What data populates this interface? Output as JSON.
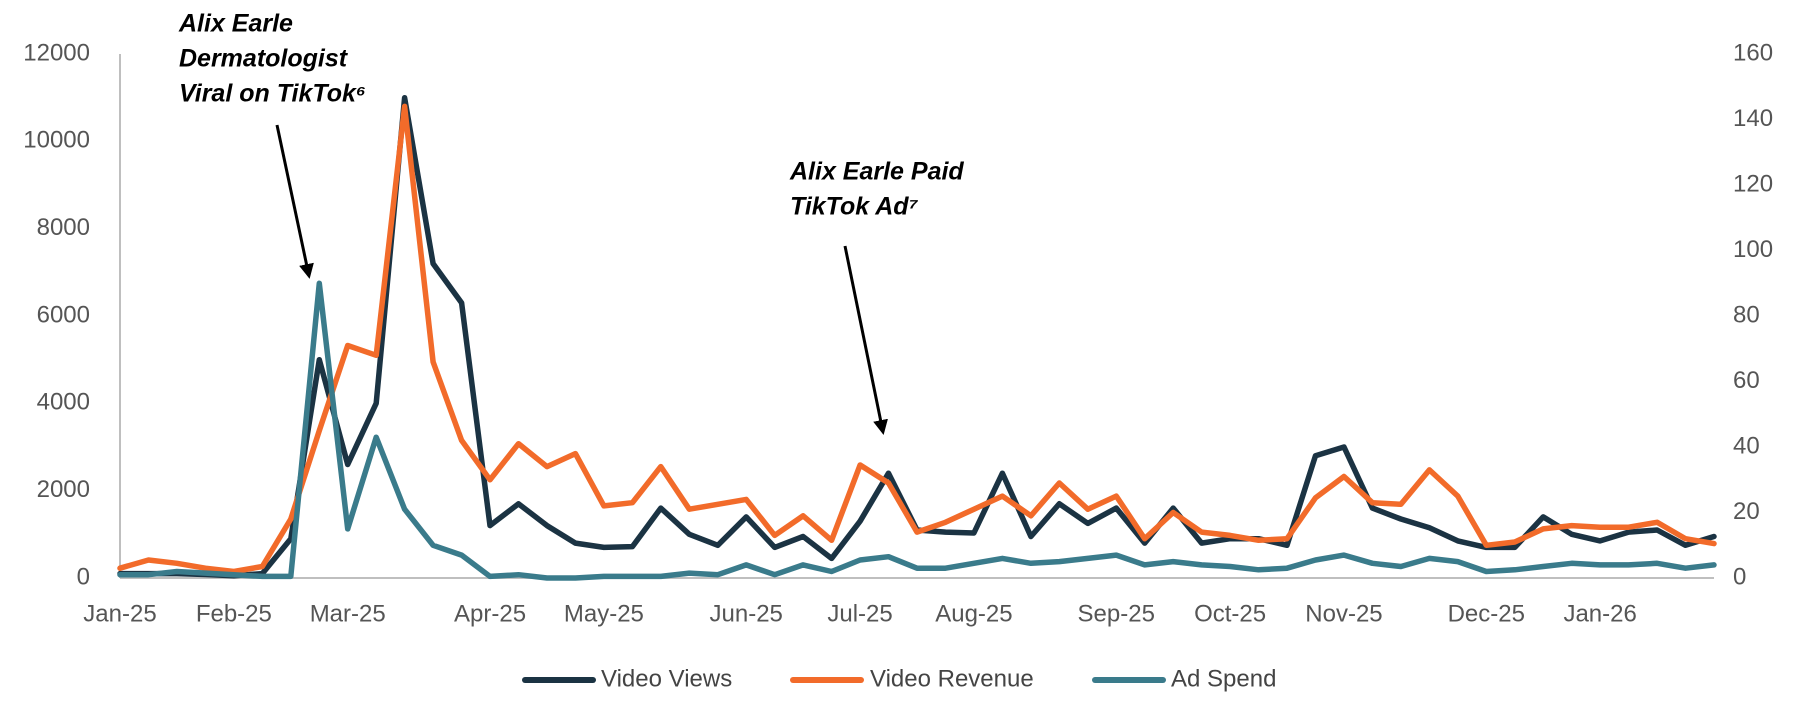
{
  "chart_data": {
    "type": "line",
    "categories": [
      "Jan-25",
      null,
      null,
      null,
      "Feb-25",
      null,
      null,
      null,
      "Mar-25",
      null,
      null,
      null,
      null,
      "Apr-25",
      null,
      null,
      null,
      "May-25",
      null,
      null,
      null,
      null,
      "Jun-25",
      null,
      null,
      null,
      "Jul-25",
      null,
      null,
      null,
      "Aug-25",
      null,
      null,
      null,
      null,
      "Sep-25",
      null,
      null,
      null,
      "Oct-25",
      null,
      null,
      null,
      "Nov-25",
      null,
      null,
      null,
      null,
      "Dec-25",
      null,
      null,
      null,
      "Jan-26",
      null,
      null,
      null,
      null
    ],
    "series": [
      {
        "name": "Video Views",
        "color": "#1b3343",
        "axis": "y",
        "values": [
          100,
          100,
          100,
          80,
          50,
          100,
          900,
          5000,
          2600,
          4000,
          11000,
          7200,
          6300,
          1200,
          1700,
          1200,
          800,
          700,
          720,
          1600,
          1000,
          750,
          1400,
          700,
          950,
          450,
          1300,
          2400,
          1100,
          1050,
          1030,
          2400,
          950,
          1700,
          1250,
          1600,
          800,
          1600,
          800,
          900,
          900,
          750,
          2800,
          3000,
          1600,
          1350,
          1150,
          850,
          700,
          700,
          1400,
          1000,
          850,
          1050,
          1100,
          750,
          950
        ]
      },
      {
        "name": "Video Revenue",
        "color": "#f26b2a",
        "axis": "y2",
        "values": [
          3,
          5.5,
          4.5,
          3,
          2,
          3.5,
          18,
          45,
          71,
          68,
          144,
          66,
          42,
          30,
          41,
          34,
          38,
          22,
          23,
          34,
          21,
          22.5,
          24,
          13,
          19,
          11.5,
          34.5,
          29,
          14,
          17,
          21,
          25,
          19,
          29,
          21,
          25,
          12,
          20,
          14,
          13,
          11.5,
          12,
          24.5,
          31,
          23,
          22.5,
          33,
          25,
          10,
          11,
          15,
          16,
          15.5,
          15.5,
          17,
          12,
          10.5
        ]
      },
      {
        "name": "Ad Spend",
        "color": "#3a7b8b",
        "axis": "y2",
        "values": [
          1,
          1,
          2,
          1.5,
          1,
          0.5,
          0.5,
          90,
          15,
          43,
          21,
          10,
          7,
          0.5,
          1,
          0,
          0,
          0.5,
          0.5,
          0.5,
          1.5,
          1,
          4,
          1,
          4,
          2,
          5.5,
          6.5,
          3,
          3,
          4.5,
          6,
          4.5,
          5,
          6,
          7,
          4,
          5,
          4,
          3.5,
          2.5,
          3,
          5.5,
          7,
          4.5,
          3.5,
          6,
          5,
          2,
          2.5,
          3.5,
          4.5,
          4,
          4,
          4.5,
          3,
          4
        ]
      }
    ],
    "ylim": [
      0,
      12000
    ],
    "yticks": [
      0,
      2000,
      4000,
      6000,
      8000,
      10000,
      12000
    ],
    "y2lim": [
      0,
      160
    ],
    "y2ticks": [
      0,
      20,
      40,
      60,
      80,
      100,
      120,
      140,
      160
    ],
    "grid": false,
    "legend": "bottom",
    "annotations": [
      {
        "lines": [
          "Alix Earle",
          "Dermatologist",
          "Viral on TikTok⁶"
        ]
      },
      {
        "lines": [
          "Alix Earle Paid",
          "TikTok Ad⁷"
        ]
      }
    ]
  }
}
